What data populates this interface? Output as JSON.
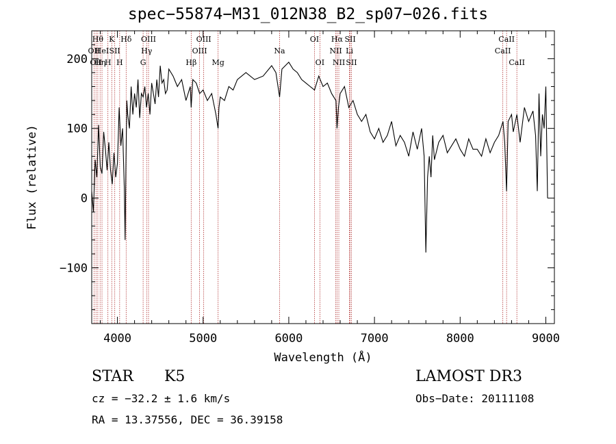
{
  "chart_data": {
    "type": "line",
    "title": "spec−55874−M31_012N38_B2_sp07−026.fits",
    "xlabel": "Wavelength (Å)",
    "ylabel": "Flux (relative)",
    "xlim": [
      3700,
      9100
    ],
    "ylim": [
      -180,
      240
    ],
    "x_ticks": [
      4000,
      5000,
      6000,
      7000,
      8000,
      9000
    ],
    "x_tick_labels": [
      "4000",
      "5000",
      "6000",
      "7000",
      "8000",
      "9000"
    ],
    "y_ticks": [
      -100,
      0,
      100,
      200
    ],
    "y_tick_labels": [
      "−100",
      "0",
      "100",
      "200"
    ],
    "series": [
      {
        "name": "flux",
        "x": [
          3700,
          3720,
          3740,
          3760,
          3780,
          3800,
          3820,
          3840,
          3860,
          3880,
          3900,
          3920,
          3940,
          3960,
          3980,
          4000,
          4020,
          4040,
          4060,
          4080,
          4090,
          4100,
          4110,
          4120,
          4140,
          4160,
          4180,
          4200,
          4220,
          4240,
          4260,
          4280,
          4300,
          4320,
          4340,
          4360,
          4380,
          4400,
          4420,
          4440,
          4460,
          4480,
          4500,
          4520,
          4540,
          4560,
          4580,
          4600,
          4650,
          4700,
          4750,
          4800,
          4850,
          4861,
          4880,
          4920,
          4960,
          5000,
          5050,
          5100,
          5150,
          5175,
          5185,
          5200,
          5250,
          5300,
          5350,
          5400,
          5500,
          5600,
          5700,
          5800,
          5850,
          5893,
          5920,
          6000,
          6050,
          6100,
          6150,
          6200,
          6250,
          6300,
          6350,
          6400,
          6450,
          6500,
          6550,
          6563,
          6580,
          6600,
          6650,
          6700,
          6750,
          6800,
          6850,
          6900,
          6950,
          7000,
          7050,
          7100,
          7150,
          7200,
          7250,
          7300,
          7350,
          7400,
          7450,
          7500,
          7550,
          7580,
          7600,
          7620,
          7640,
          7660,
          7680,
          7700,
          7750,
          7800,
          7850,
          7900,
          7950,
          8000,
          8050,
          8100,
          8150,
          8200,
          8250,
          8300,
          8350,
          8400,
          8450,
          8500,
          8520,
          8542,
          8560,
          8600,
          8620,
          8662,
          8700,
          8750,
          8800,
          8850,
          8880,
          8900,
          8920,
          8940,
          8960,
          8980,
          9000,
          9020
        ],
        "y": [
          10,
          -20,
          55,
          30,
          105,
          45,
          35,
          95,
          70,
          40,
          80,
          40,
          20,
          65,
          30,
          50,
          130,
          75,
          100,
          15,
          -60,
          55,
          140,
          120,
          100,
          160,
          120,
          150,
          130,
          170,
          115,
          150,
          145,
          160,
          130,
          150,
          120,
          165,
          150,
          135,
          170,
          145,
          190,
          165,
          170,
          150,
          155,
          185,
          175,
          160,
          170,
          140,
          160,
          130,
          170,
          165,
          150,
          155,
          140,
          150,
          120,
          100,
          130,
          145,
          140,
          160,
          155,
          170,
          180,
          170,
          175,
          190,
          180,
          145,
          185,
          195,
          185,
          180,
          170,
          165,
          160,
          155,
          175,
          160,
          165,
          150,
          140,
          100,
          130,
          150,
          160,
          130,
          140,
          120,
          110,
          120,
          95,
          85,
          100,
          80,
          90,
          110,
          75,
          90,
          80,
          60,
          95,
          70,
          100,
          60,
          -78,
          30,
          60,
          30,
          90,
          55,
          80,
          90,
          65,
          75,
          85,
          70,
          60,
          85,
          70,
          70,
          60,
          85,
          65,
          80,
          90,
          110,
          80,
          10,
          110,
          120,
          95,
          120,
          80,
          130,
          110,
          125,
          90,
          10,
          150,
          60,
          120,
          100,
          160,
          0
        ],
        "color": "#000000"
      }
    ],
    "lines": [
      {
        "wavelength": 3727,
        "label": "OII",
        "row": 1
      },
      {
        "wavelength": 3750,
        "label": "OII",
        "row": 2
      },
      {
        "wavelength": 3771,
        "label": "Hθ",
        "row": 0
      },
      {
        "wavelength": 3798,
        "label": "Hη",
        "row": 2
      },
      {
        "wavelength": 3820,
        "label": "HeI",
        "row": 1
      },
      {
        "wavelength": 3889,
        "label": "H",
        "row": 2
      },
      {
        "wavelength": 3934,
        "label": "K",
        "row": 0
      },
      {
        "wavelength": 3969,
        "label": "SII",
        "row": 1
      },
      {
        "wavelength": 4026,
        "label": "H",
        "row": 2
      },
      {
        "wavelength": 4102,
        "label": "Hδ",
        "row": 0
      },
      {
        "wavelength": 4300,
        "label": "G",
        "row": 2
      },
      {
        "wavelength": 4341,
        "label": "Hγ",
        "row": 1
      },
      {
        "wavelength": 4363,
        "label": "OIII",
        "row": 0
      },
      {
        "wavelength": 4861,
        "label": "Hβ",
        "row": 2
      },
      {
        "wavelength": 4959,
        "label": "OIII",
        "row": 1
      },
      {
        "wavelength": 5007,
        "label": "OIII",
        "row": 0
      },
      {
        "wavelength": 5175,
        "label": "Mg",
        "row": 2
      },
      {
        "wavelength": 5893,
        "label": "Na",
        "row": 1
      },
      {
        "wavelength": 6300,
        "label": "OI",
        "row": 0
      },
      {
        "wavelength": 6363,
        "label": "OI",
        "row": 2
      },
      {
        "wavelength": 6548,
        "label": "NII",
        "row": 1
      },
      {
        "wavelength": 6563,
        "label": "Hα",
        "row": 0
      },
      {
        "wavelength": 6584,
        "label": "NII",
        "row": 2
      },
      {
        "wavelength": 6708,
        "label": "Li",
        "row": 1
      },
      {
        "wavelength": 6716,
        "label": "SII",
        "row": 0
      },
      {
        "wavelength": 6731,
        "label": "SII",
        "row": 2
      },
      {
        "wavelength": 8498,
        "label": "CaII",
        "row": 1
      },
      {
        "wavelength": 8542,
        "label": "CaII",
        "row": 0
      },
      {
        "wavelength": 8662,
        "label": "CaII",
        "row": 2
      }
    ],
    "line_color": "#b03030"
  },
  "info": {
    "object_class": "STAR",
    "subclass": "K5",
    "survey": "LAMOST DR3",
    "redshift": "cz = −32.2 ± 1.6 km/s",
    "obs_date": "Obs−Date: 20111108",
    "coords": "RA =  13.37556, DEC =  36.39158"
  }
}
